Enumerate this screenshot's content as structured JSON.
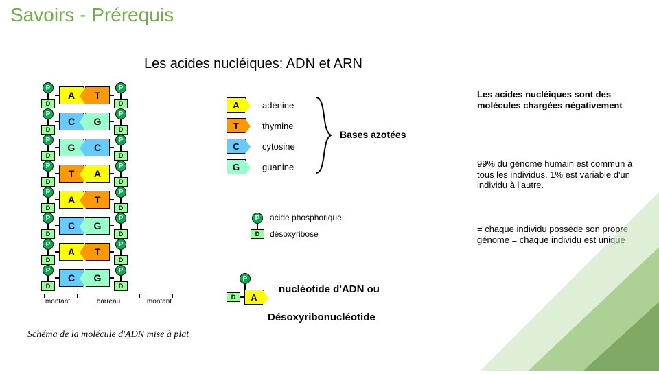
{
  "title": "Savoirs - Prérequis",
  "subtitle": "Les acides nucléiques: ADN et ARN",
  "colors": {
    "title": "#70ad47",
    "phosphate_fill": "#00b050",
    "ribose_fill": "#99ff99",
    "A_fill": "#ffff00",
    "T_fill": "#ff9900",
    "C_fill": "#66ccff",
    "G_fill": "#99ffcc",
    "decor1": "#70ad4755",
    "decor2": "#a9d18e88",
    "decor3": "#548235aa"
  },
  "dna": {
    "pairs": [
      [
        "A",
        "T"
      ],
      [
        "C",
        "G"
      ],
      [
        "G",
        "C"
      ],
      [
        "T",
        "A"
      ],
      [
        "A",
        "T"
      ],
      [
        "C",
        "G"
      ],
      [
        "A",
        "T"
      ],
      [
        "C",
        "G"
      ]
    ],
    "left_label": "montant",
    "mid_label": "barreau",
    "right_label": "montant",
    "phos_letter": "P",
    "ribose_letter": "D"
  },
  "caption": "Schéma de la molécule d'ADN mise à plat",
  "legend": {
    "bases": [
      {
        "l": "A",
        "name": "adénine"
      },
      {
        "l": "T",
        "name": "thymine"
      },
      {
        "l": "C",
        "name": "cytosine"
      },
      {
        "l": "G",
        "name": "guanine"
      }
    ],
    "group_label": "Bases azotées",
    "phos_label": "acide phosphorique",
    "ribose_label": "désoxyribose",
    "nucleotide_label_1": "nucléotide d'ADN ou",
    "nucleotide_label_2": "Désoxyribonucléotide"
  },
  "right": {
    "para1": "Les acides nucléiques sont des molécules chargées négativement",
    "para2": "99% du génome humain  est commun à tous les individus. 1% est variable d'un individu à l'autre.",
    "para3": "= chaque individu possède son propre génome = chaque individu est unique"
  }
}
